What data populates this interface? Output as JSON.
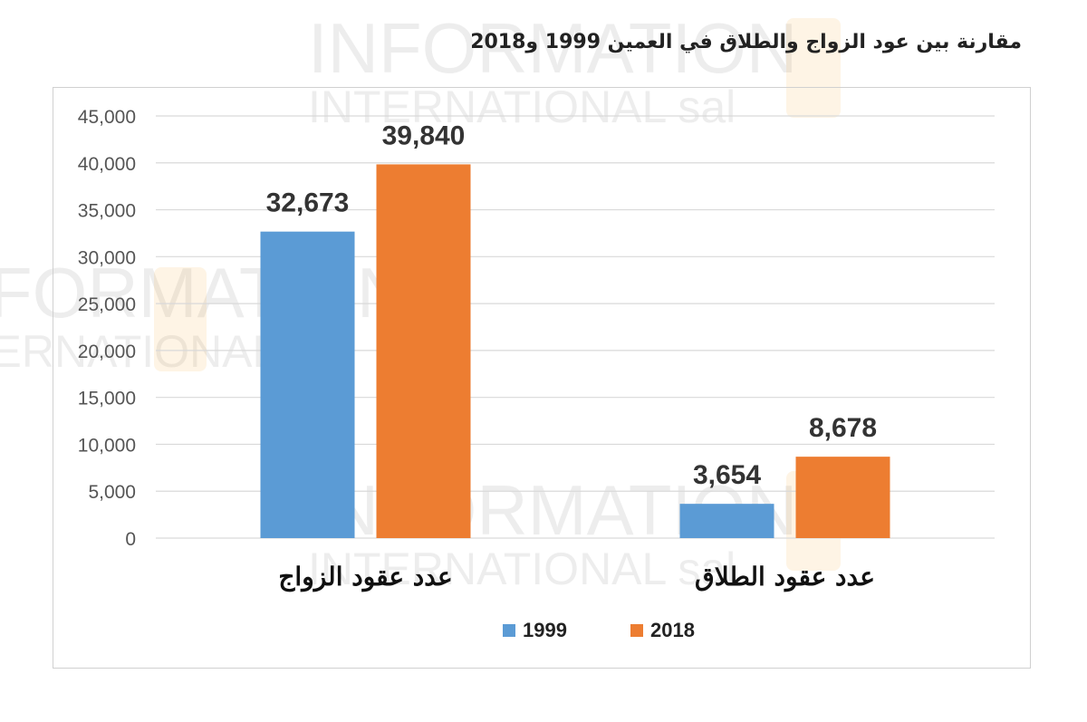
{
  "title": "مقارنة بين عود الزواج والطلاق في العمين 1999 و2018",
  "watermark": {
    "line1": "INFORMATION",
    "line2": "INTERNATIONAL sal",
    "brand_color": "#f7b046"
  },
  "colors": {
    "series_1999": "#5b9bd5",
    "series_2018": "#ed7d31",
    "gridline": "#d9d9d9",
    "axis_text": "#555555"
  },
  "legend": [
    {
      "label": "1999",
      "color": "#5b9bd5"
    },
    {
      "label": "2018",
      "color": "#ed7d31"
    }
  ],
  "chart_data": {
    "type": "bar",
    "categories": [
      "عدد عقود الزواج",
      "عدد عقود الطلاق"
    ],
    "series": [
      {
        "name": "1999",
        "values": [
          32673,
          3654
        ],
        "labels": [
          "32,673",
          "3,654"
        ]
      },
      {
        "name": "2018",
        "values": [
          39840,
          8678
        ],
        "labels": [
          "39,840",
          "8,678"
        ]
      }
    ],
    "ylim": [
      0,
      45000
    ],
    "yticks": [
      0,
      5000,
      10000,
      15000,
      20000,
      25000,
      30000,
      35000,
      40000,
      45000
    ],
    "ytick_labels": [
      "0",
      "5,000",
      "10,000",
      "15,000",
      "20,000",
      "25,000",
      "30,000",
      "35,000",
      "40,000",
      "45,000"
    ],
    "grid": true,
    "legend_position": "bottom"
  }
}
